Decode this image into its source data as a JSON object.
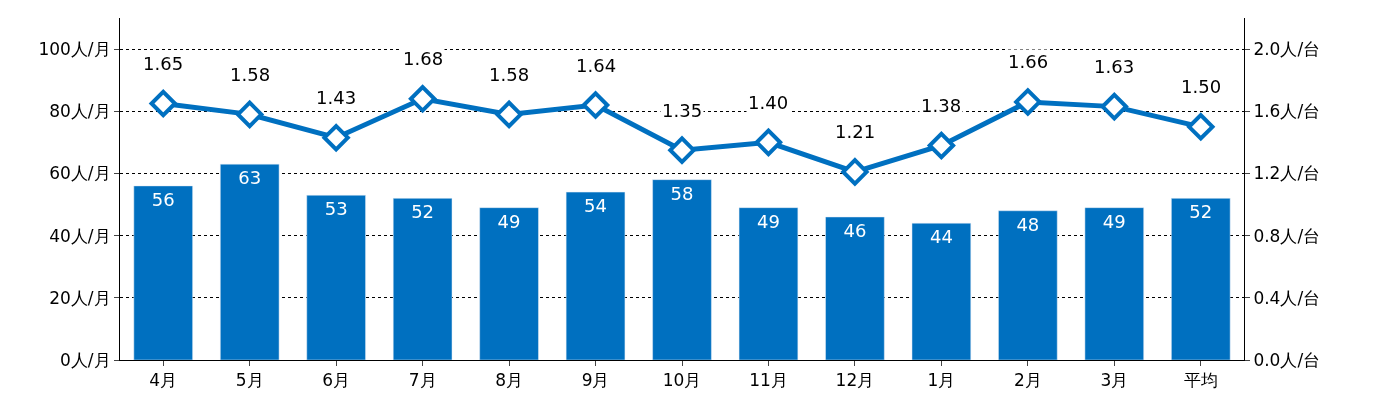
{
  "chart_data": {
    "type": "bar",
    "categories": [
      "4月",
      "5月",
      "6月",
      "7月",
      "8月",
      "9月",
      "10月",
      "11月",
      "12月",
      "1月",
      "2月",
      "3月",
      "平均"
    ],
    "series": [
      {
        "color": "#0070c0",
        "values": [
          56,
          63,
          53,
          52,
          49,
          54,
          58,
          49,
          46,
          44,
          48,
          49,
          52
        ]
      },
      {
        "type": "line",
        "axis": "y2",
        "color": "#0070c0",
        "marker": "diamond",
        "line_style": "solid",
        "values": [
          1.65,
          1.58,
          1.43,
          1.68,
          1.58,
          1.64,
          1.35,
          1.4,
          1.21,
          1.38,
          1.66,
          1.63,
          1.5
        ],
        "value_labels": [
          "1.65",
          "1.58",
          "1.43",
          "1.68",
          "1.58",
          "1.64",
          "1.35",
          "1.40",
          "1.21",
          "1.38",
          "1.66",
          "1.63",
          "1.50"
        ]
      }
    ],
    "ylim": [
      0,
      110
    ],
    "yticks": [
      {
        "value": 0,
        "label": "0人/月"
      },
      {
        "value": 20,
        "label": "20人/月"
      },
      {
        "value": 40,
        "label": "40人/月"
      },
      {
        "value": 60,
        "label": "60人/月"
      },
      {
        "value": 80,
        "label": "80人/月"
      },
      {
        "value": 100,
        "label": "100人/月"
      }
    ],
    "y2lim": [
      0,
      2.2
    ],
    "y2ticks": [
      {
        "value": 0,
        "label": "0.0人/台"
      },
      {
        "value": 0.4,
        "label": "0.4人/台"
      },
      {
        "value": 0.8,
        "label": "0.8人/台"
      },
      {
        "value": 1.2,
        "label": "1.2人/台"
      },
      {
        "value": 1.6,
        "label": "1.6人/台"
      },
      {
        "value": 2.0,
        "label": "2.0人/台"
      }
    ],
    "grid": "y",
    "data_labels": true
  }
}
